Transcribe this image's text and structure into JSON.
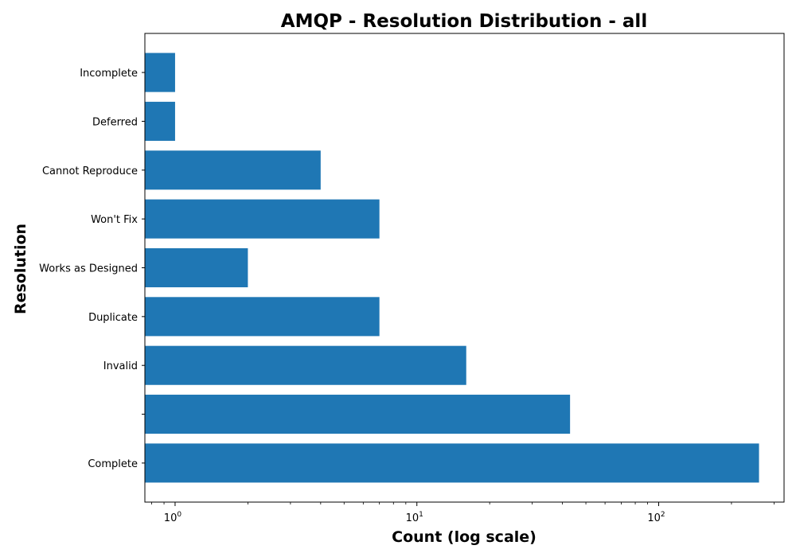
{
  "chart_data": {
    "type": "bar",
    "orientation": "horizontal",
    "title": "AMQP - Resolution Distribution - all",
    "xlabel": "Count (log scale)",
    "ylabel": "Resolution",
    "x_scale": "log",
    "xlim": [
      0.75,
      330
    ],
    "x_ticks": [
      {
        "value": 1,
        "base": "10",
        "exp": "0"
      },
      {
        "value": 10,
        "base": "10",
        "exp": "1"
      },
      {
        "value": 100,
        "base": "10",
        "exp": "2"
      }
    ],
    "categories": [
      "Complete",
      "",
      "Invalid",
      "Duplicate",
      "Works as Designed",
      "Won't Fix",
      "Cannot Reproduce",
      "Deferred",
      "Incomplete"
    ],
    "values": [
      260,
      43,
      16,
      7,
      2,
      7,
      4,
      1,
      1
    ],
    "color": "#1f77b4",
    "grid": false,
    "legend": "none"
  }
}
